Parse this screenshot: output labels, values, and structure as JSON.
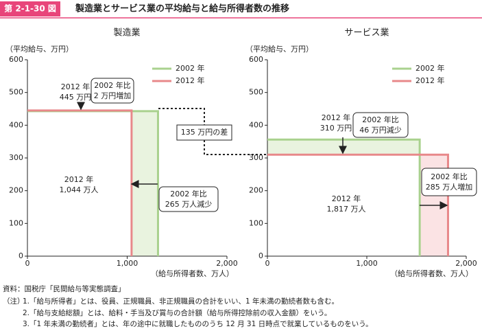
{
  "header": {
    "label": "第 2-1-30 図",
    "title": "製造業とサービス業の平均給与と給与所得者数の推移"
  },
  "comparison": "135 万円の差",
  "chart_data": [
    {
      "type": "line",
      "title": "製造業",
      "ylabel": "（平均給与、万円）",
      "xlabel": "（給与所得者数、万人）",
      "xlim": [
        0,
        2000
      ],
      "xticks": [
        0,
        {
          "value": 1000,
          "label": "1,000"
        },
        {
          "value": 2000,
          "label": "2,000"
        }
      ],
      "ylim": [
        0,
        600
      ],
      "yticks": [
        0,
        100,
        200,
        300,
        400,
        500,
        600
      ],
      "series": [
        {
          "name": "2002 年",
          "color": "#a9d18e",
          "x": [
            0,
            1309,
            1309
          ],
          "values": [
            443,
            443,
            0
          ]
        },
        {
          "name": "2012 年",
          "color": "#e8888a",
          "x": [
            0,
            1044,
            1044
          ],
          "values": [
            445,
            445,
            0
          ]
        }
      ],
      "labels": [
        [
          "2012 年",
          "445 万円"
        ],
        [
          "2012 年",
          "1,044 万人"
        ]
      ],
      "callouts": [
        [
          "2002 年比",
          "2 万円増加"
        ],
        [
          "2002 年比",
          "265 万人減少"
        ]
      ]
    },
    {
      "type": "line",
      "title": "サービス業",
      "ylabel": "（平均給与、万円）",
      "xlabel": "（給与所得者数、万人）",
      "xlim": [
        0,
        2000
      ],
      "xticks": [
        0,
        {
          "value": 1000,
          "label": "1,000"
        },
        {
          "value": 2000,
          "label": "2,000"
        }
      ],
      "ylim": [
        0,
        600
      ],
      "yticks": [
        0,
        100,
        200,
        300,
        400,
        500,
        600
      ],
      "series": [
        {
          "name": "2002 年",
          "color": "#a9d18e",
          "x": [
            0,
            1532,
            1532
          ],
          "values": [
            356,
            356,
            0
          ]
        },
        {
          "name": "2012 年",
          "color": "#e8888a",
          "x": [
            0,
            1817,
            1817
          ],
          "values": [
            310,
            310,
            0
          ]
        }
      ],
      "labels": [
        [
          "2012 年",
          "310 万円"
        ],
        [
          "2012 年",
          "1,817 万人"
        ]
      ],
      "callouts": [
        [
          "2002 年比",
          "46 万円減少"
        ],
        [
          "2002 年比",
          "285 万人増加"
        ]
      ]
    }
  ],
  "notes": {
    "source": "資料：国税庁「民間給与等実態調査」",
    "label": "（注）",
    "items": [
      "1.「給与所得者」とは、役員、正規職員、非正規職員の合計をいい、1 年未満の勤続者数も含む。",
      "2.「給与支給総額」とは、給料・手当及び賞与の合計額（給与所得控除前の収入金額）をいう。",
      "3.「1 年未満の勤続者」とは、年の途中に就職したもののうち 12 月 31 日時点で就業しているものをいう。"
    ]
  }
}
